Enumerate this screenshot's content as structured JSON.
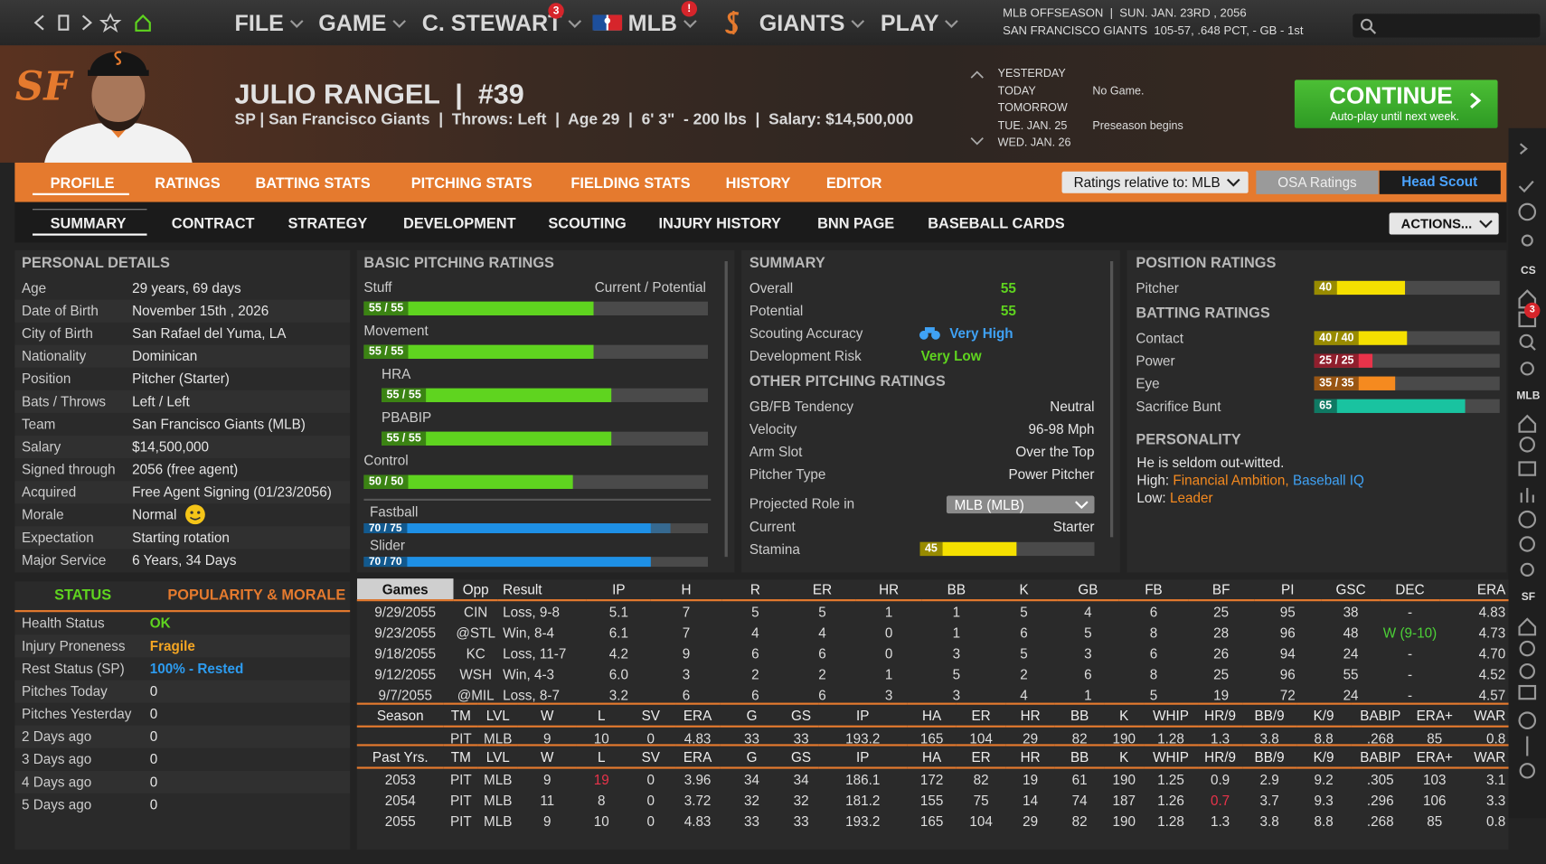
{
  "nav": {
    "menus": [
      "FILE",
      "GAME",
      "C. STEWART",
      "MLB",
      "GIANTS",
      "PLAY"
    ],
    "badges": [
      "3",
      "!"
    ],
    "status_line1": "MLB OFFSEASON  |  SUN. JAN. 23RD , 2056",
    "status_line2": "SAN FRANCISCO GIANTS  105-57, .648 PCT, - GB - 1st"
  },
  "team_logo": "SF",
  "player": {
    "name": "JULIO RANGEL  |  #39",
    "info": "SP | San Francisco Giants  |  Throws: Left  |  Age 29  |  6' 3\"  - 200 lbs  |  Salary: $14,500,000"
  },
  "schedule": [
    {
      "day": "YESTERDAY"
    },
    {
      "day": "TODAY",
      "event": "No Game."
    },
    {
      "day": "TOMORROW"
    },
    {
      "day": "TUE. JAN. 25",
      "event": "Preseason begins"
    },
    {
      "day": "WED. JAN. 26"
    }
  ],
  "continue_button": {
    "label": "CONTINUE",
    "sub": "Auto-play until next week."
  },
  "tabs": [
    "PROFILE",
    "RATINGS",
    "BATTING STATS",
    "PITCHING STATS",
    "FIELDING STATS",
    "HISTORY",
    "EDITOR"
  ],
  "ratings_relative": "Ratings relative to: MLB",
  "osa_ratings": "OSA Ratings",
  "head_scout": "Head Scout",
  "subtabs": [
    "SUMMARY",
    "CONTRACT",
    "STRATEGY",
    "DEVELOPMENT",
    "SCOUTING",
    "INJURY HISTORY",
    "BNN PAGE",
    "BASEBALL CARDS"
  ],
  "actions": "ACTIONS...",
  "personal_details": {
    "title": "PERSONAL DETAILS",
    "rows": [
      [
        "Age",
        "29 years, 69 days"
      ],
      [
        "Date of Birth",
        "November 15th , 2026"
      ],
      [
        "City of Birth",
        "San Rafael del Yuma, LA"
      ],
      [
        "Nationality",
        "Dominican"
      ],
      [
        "Position",
        "Pitcher (Starter)"
      ],
      [
        "Bats / Throws",
        "Left / Left"
      ],
      [
        "Team",
        "San Francisco Giants (MLB)"
      ],
      [
        "Salary",
        "$14,500,000"
      ],
      [
        "Signed through",
        "2056 (free agent)"
      ],
      [
        "Acquired",
        "Free Agent Signing (01/23/2056)"
      ],
      [
        "Morale",
        "Normal"
      ],
      [
        "Expectation",
        "Starting rotation"
      ],
      [
        "Major Service",
        "6 Years, 34 Days"
      ]
    ]
  },
  "basic_pitching": {
    "title": "BASIC PITCHING RATINGS",
    "header": "Current / Potential",
    "ratings": [
      {
        "name": "Stuff",
        "label": "55 / 55",
        "current": 55,
        "potential": 55,
        "color": "#5fd41f"
      },
      {
        "name": "Movement",
        "label": "55 / 55",
        "current": 55,
        "potential": 55,
        "color": "#5fd41f"
      },
      {
        "name": "HRA",
        "label": "55 / 55",
        "current": 55,
        "potential": 55,
        "color": "#5fd41f"
      },
      {
        "name": "PBABIP",
        "label": "55 / 55",
        "current": 55,
        "potential": 55,
        "color": "#5fd41f"
      },
      {
        "name": "Control",
        "label": "50 / 50",
        "current": 50,
        "potential": 50,
        "color": "#5fd41f"
      }
    ],
    "pitches": [
      {
        "name": "Fastball",
        "label": "70 / 75",
        "current": 70,
        "potential": 75,
        "color": "#1e90e6"
      },
      {
        "name": "Slider",
        "label": "70 / 70",
        "current": 70,
        "potential": 70,
        "color": "#1e90e6"
      }
    ]
  },
  "summary": {
    "title": "SUMMARY",
    "rows": [
      {
        "label": "Overall",
        "value": 55,
        "color": "#5fd41f"
      },
      {
        "label": "Potential",
        "value": 55,
        "color": "#5fd41f"
      },
      {
        "label": "Scouting Accuracy",
        "value": "Very High",
        "color": "#3fa2f5"
      },
      {
        "label": "Development Risk",
        "value": "Very Low",
        "color": "#5fd41f"
      }
    ]
  },
  "other_pitching": {
    "title": "OTHER PITCHING RATINGS",
    "rows": [
      [
        "GB/FB Tendency",
        "Neutral"
      ],
      [
        "Velocity",
        "96-98 Mph"
      ],
      [
        "Arm Slot",
        "Over the Top"
      ],
      [
        "Pitcher Type",
        "Power Pitcher"
      ]
    ],
    "projected_role": {
      "label": "Projected Role in",
      "value": "MLB (MLB)"
    },
    "current": {
      "label": "Current",
      "value": "Starter"
    },
    "stamina": {
      "name": "Stamina",
      "value": 45,
      "color": "#f5e000"
    }
  },
  "position_ratings": {
    "title": "POSITION RATINGS",
    "rows": [
      {
        "name": "Pitcher",
        "value": 40,
        "color": "#f5e000"
      }
    ]
  },
  "batting_ratings": {
    "title": "BATTING RATINGS",
    "rows": [
      {
        "name": "Contact",
        "label": "40 / 40",
        "current": 40,
        "potential": 40,
        "color": "#f5e000"
      },
      {
        "name": "Power",
        "label": "25 / 25",
        "current": 25,
        "potential": 25,
        "color": "#e8334a"
      },
      {
        "name": "Eye",
        "label": "35 / 35",
        "current": 35,
        "potential": 35,
        "color": "#f58a1f"
      },
      {
        "name": "Sacrifice Bunt",
        "value": 65,
        "color": "#19c3a0"
      }
    ]
  },
  "personality": {
    "title": "PERSONALITY",
    "text": "He is seldom out-witted.",
    "high_label": "High:",
    "high": [
      "Financial Ambition,",
      "Baseball IQ"
    ],
    "low_label": "Low:",
    "low": [
      "Leader"
    ]
  },
  "status": {
    "tabs": [
      "STATUS",
      "POPULARITY & MORALE"
    ],
    "rows": [
      {
        "label": "Health Status",
        "value": "OK",
        "color": "#5fd41f"
      },
      {
        "label": "Injury Proneness",
        "value": "Fragile",
        "color": "#f5a623"
      },
      {
        "label": "Rest Status (SP)",
        "value": "100% - Rested",
        "color": "#2d9cf0"
      },
      {
        "label": "Pitches Today",
        "value": 0
      },
      {
        "label": "Pitches Yesterday",
        "value": 0
      },
      {
        "label": "2 Days ago",
        "value": 0
      },
      {
        "label": "3 Days ago",
        "value": 0
      },
      {
        "label": "4 Days ago",
        "value": 0
      },
      {
        "label": "5 Days ago",
        "value": 0
      }
    ]
  },
  "game_log": {
    "columns": [
      "Games",
      "Opp",
      "Result",
      "IP",
      "H",
      "R",
      "ER",
      "HR",
      "BB",
      "K",
      "GB",
      "FB",
      "BF",
      "PI",
      "GSC",
      "DEC",
      "ERA"
    ],
    "rows": [
      [
        "9/29/2055",
        "CIN",
        "Loss, 9-8",
        "5.1",
        "7",
        "5",
        "5",
        "1",
        "1",
        "5",
        "4",
        "6",
        "25",
        "95",
        "38",
        "-",
        "4.83"
      ],
      [
        "9/23/2055",
        "@STL",
        "Win, 8-4",
        "6.1",
        "7",
        "4",
        "4",
        "0",
        "1",
        "6",
        "5",
        "8",
        "28",
        "96",
        "48",
        "W (9-10)",
        "4.73"
      ],
      [
        "9/18/2055",
        "KC",
        "Loss, 11-7",
        "4.2",
        "9",
        "6",
        "6",
        "0",
        "3",
        "5",
        "3",
        "6",
        "26",
        "94",
        "24",
        "-",
        "4.70"
      ],
      [
        "9/12/2055",
        "WSH",
        "Win, 4-3",
        "6.0",
        "3",
        "2",
        "2",
        "1",
        "5",
        "2",
        "6",
        "8",
        "25",
        "96",
        "55",
        "-",
        "4.52"
      ],
      [
        "9/7/2055",
        "@MIL",
        "Loss, 8-7",
        "3.2",
        "6",
        "6",
        "6",
        "3",
        "3",
        "4",
        "1",
        "5",
        "19",
        "72",
        "24",
        "-",
        "4.57"
      ]
    ],
    "highlights": [
      [
        1,
        15,
        "#4cd137"
      ]
    ]
  },
  "season": {
    "columns": [
      "Season",
      "TM",
      "LVL",
      "W",
      "L",
      "SV",
      "ERA",
      "G",
      "GS",
      "IP",
      "HA",
      "ER",
      "HR",
      "BB",
      "K",
      "WHIP",
      "HR/9",
      "BB/9",
      "K/9",
      "BABIP",
      "ERA+",
      "WAR"
    ],
    "rows": [
      [
        null,
        "PIT",
        "MLB",
        "9",
        "10",
        "0",
        "4.83",
        "33",
        "33",
        "193.2",
        "165",
        "104",
        "29",
        "82",
        "190",
        "1.28",
        "1.3",
        "3.8",
        "8.8",
        ".268",
        "85",
        "0.8"
      ]
    ]
  },
  "past": {
    "columns": [
      "Past Yrs.",
      "TM",
      "LVL",
      "W",
      "L",
      "SV",
      "ERA",
      "G",
      "GS",
      "IP",
      "HA",
      "ER",
      "HR",
      "BB",
      "K",
      "WHIP",
      "HR/9",
      "BB/9",
      "K/9",
      "BABIP",
      "ERA+",
      "WAR"
    ],
    "rows": [
      [
        "2053",
        "PIT",
        "MLB",
        "9",
        "19",
        "0",
        "3.96",
        "34",
        "34",
        "186.1",
        "172",
        "82",
        "19",
        "61",
        "190",
        "1.25",
        "0.9",
        "2.9",
        "9.2",
        ".305",
        "103",
        "3.1"
      ],
      [
        "2054",
        "PIT",
        "MLB",
        "11",
        "8",
        "0",
        "3.72",
        "32",
        "32",
        "181.2",
        "155",
        "75",
        "14",
        "74",
        "187",
        "1.26",
        "0.7",
        "3.7",
        "9.3",
        ".296",
        "106",
        "3.3"
      ],
      [
        "2055",
        "PIT",
        "MLB",
        "9",
        "10",
        "0",
        "4.83",
        "33",
        "33",
        "193.2",
        "165",
        "104",
        "29",
        "82",
        "190",
        "1.28",
        "1.3",
        "3.8",
        "8.8",
        ".268",
        "85",
        "0.8"
      ]
    ],
    "highlights": [
      [
        0,
        4,
        "#e8334a"
      ],
      [
        1,
        16,
        "#e8334a"
      ]
    ]
  },
  "sidebar": {
    "labels": [
      "CS",
      "MLB",
      "SF"
    ],
    "badge": "3"
  }
}
